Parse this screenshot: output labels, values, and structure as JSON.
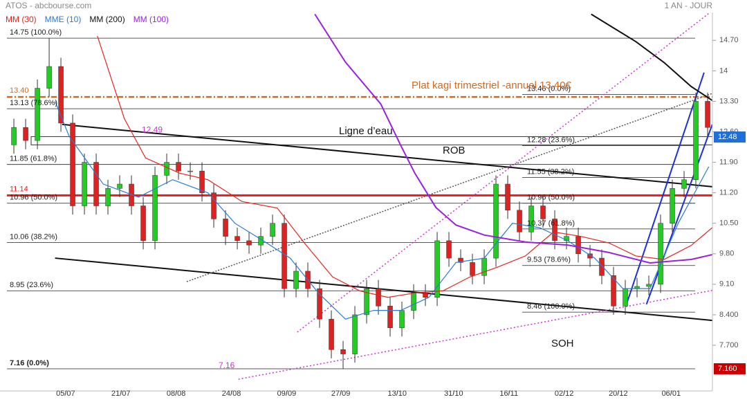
{
  "chart_data": {
    "type": "candlestick",
    "title": "ATOS - abcbourse.com",
    "subtitle": "1 AN - JOUR",
    "xlim": [
      -1.18,
      59.41
    ],
    "ylim": [
      6.81,
      15.34
    ],
    "xticks": [
      {
        "value": 4.4,
        "label": "05/07"
      },
      {
        "value": 9.1,
        "label": "21/07"
      },
      {
        "value": 13.8,
        "label": "08/08"
      },
      {
        "value": 18.5,
        "label": "24/08"
      },
      {
        "value": 23.2,
        "label": "09/09"
      },
      {
        "value": 27.8,
        "label": "27/09"
      },
      {
        "value": 32.6,
        "label": "13/10"
      },
      {
        "value": 37.4,
        "label": "31/10"
      },
      {
        "value": 42.1,
        "label": "16/11"
      },
      {
        "value": 46.8,
        "label": "02/12"
      },
      {
        "value": 51.4,
        "label": "20/12"
      },
      {
        "value": 55.9,
        "label": "06/01"
      }
    ],
    "yticks": [
      {
        "value": 14.7,
        "label": "14.70"
      },
      14,
      {
        "value": 13.3,
        "label": "13.30"
      },
      {
        "value": 12.6,
        "label": "12.60"
      },
      {
        "value": 11.9,
        "label": "11.90"
      },
      {
        "value": 11.2,
        "label": "11.20"
      },
      {
        "value": 10.5,
        "label": "10.50"
      },
      {
        "value": 9.8,
        "label": "9.80"
      },
      {
        "value": 9.1,
        "label": "9.10"
      },
      {
        "value": 8.4,
        "label": "8.400"
      },
      {
        "value": 7.7,
        "label": "7.700"
      }
    ],
    "up_color": "#22cc22",
    "down_color": "#dd2222",
    "open": [
      12.3,
      12.7,
      12.4,
      13.6,
      14.1,
      12.8,
      10.9,
      11.9,
      10.9,
      11.3,
      11.4,
      10.9,
      10.1,
      11.6,
      11.9,
      11.7,
      11.7,
      11.2,
      10.6,
      10.2,
      10.1,
      10.0,
      10.2,
      10.5,
      9.0,
      9.4,
      9.0,
      8.3,
      7.6,
      7.5,
      8.4,
      9.0,
      8.6,
      8.1,
      8.5,
      8.9,
      8.8,
      10.1,
      9.7,
      9.6,
      9.3,
      9.7,
      11.4,
      10.8,
      10.3,
      10.9,
      10.6,
      10.1,
      10.2,
      9.8,
      9.7,
      9.3,
      8.6,
      9.0,
      9.05,
      9.1,
      10.5,
      11.3,
      11.5,
      13.3
    ],
    "high": [
      12.9,
      12.9,
      13.8,
      14.75,
      14.3,
      13.0,
      12.1,
      12.1,
      11.5,
      11.6,
      11.6,
      11.1,
      11.8,
      12.1,
      12.1,
      11.9,
      11.9,
      11.4,
      10.8,
      10.4,
      10.3,
      10.4,
      10.7,
      10.7,
      9.6,
      9.6,
      9.2,
      8.5,
      7.8,
      8.6,
      9.2,
      9.2,
      8.8,
      8.7,
      9.1,
      9.1,
      10.3,
      10.3,
      9.9,
      9.8,
      9.9,
      11.6,
      11.6,
      11.0,
      11.1,
      11.1,
      10.8,
      10.4,
      10.4,
      10.0,
      9.9,
      9.5,
      9.2,
      9.25,
      9.3,
      10.7,
      11.5,
      11.7,
      13.5,
      13.5
    ],
    "low": [
      12.1,
      12.2,
      12.2,
      13.4,
      12.6,
      10.7,
      10.7,
      10.7,
      10.7,
      11.1,
      10.7,
      9.9,
      9.9,
      11.4,
      11.5,
      11.5,
      11.0,
      10.4,
      10.0,
      9.9,
      9.8,
      9.8,
      10.0,
      8.8,
      8.8,
      8.8,
      8.1,
      7.4,
      7.16,
      7.3,
      8.2,
      8.4,
      7.9,
      7.9,
      8.3,
      8.6,
      8.6,
      9.5,
      9.4,
      9.1,
      9.1,
      9.5,
      10.6,
      10.1,
      10.1,
      10.4,
      9.9,
      9.9,
      9.6,
      9.5,
      9.1,
      8.4,
      8.4,
      8.8,
      8.85,
      8.9,
      10.3,
      11.1,
      11.3,
      12.5
    ],
    "close": [
      12.7,
      12.4,
      13.6,
      14.1,
      12.8,
      10.9,
      11.9,
      10.9,
      11.3,
      11.4,
      10.9,
      10.1,
      11.6,
      11.9,
      11.7,
      11.7,
      11.2,
      10.6,
      10.2,
      10.1,
      10.0,
      10.2,
      10.5,
      9.0,
      9.4,
      9.0,
      8.3,
      7.6,
      7.5,
      8.4,
      9.0,
      8.6,
      8.1,
      8.5,
      8.9,
      8.8,
      10.1,
      9.7,
      9.6,
      9.3,
      9.7,
      11.4,
      10.8,
      10.3,
      10.9,
      10.6,
      10.1,
      10.2,
      9.8,
      9.7,
      9.3,
      8.6,
      9.0,
      9.05,
      9.1,
      10.5,
      11.3,
      11.5,
      13.3,
      12.7
    ],
    "series": [
      {
        "name": "MM (30)",
        "color": "#e8231c",
        "x": [
          7.1,
          9.4,
          11.2,
          14.1,
          16.5,
          19.4,
          22.4,
          24.7,
          27.1,
          29.4,
          31.8,
          34.1,
          36.5,
          38.8,
          41.2,
          43.5,
          45.9,
          48.2,
          50.6,
          52.9,
          55.3,
          57.6,
          59.4
        ],
        "values": [
          14.8,
          12.9,
          12.0,
          11.65,
          11.5,
          11.0,
          10.85,
          10.05,
          9.27,
          8.95,
          8.8,
          8.9,
          8.95,
          9.27,
          9.5,
          9.75,
          10.3,
          10.2,
          10.05,
          9.75,
          9.67,
          9.99,
          10.4
        ]
      },
      {
        "name": "MME (10)",
        "color": "#2a7bd4",
        "x": [
          3.5,
          4.7,
          7.6,
          10.6,
          13.5,
          16.5,
          18.8,
          21.2,
          23.5,
          25.9,
          28.2,
          30.6,
          32.9,
          35.3,
          37.6,
          40,
          42.4,
          44.7,
          47.1,
          49.4,
          51.8,
          54.1,
          56.5,
          59.1
        ],
        "values": [
          13.3,
          12.5,
          11.4,
          11.1,
          11.5,
          11.2,
          10.5,
          10.1,
          9.7,
          8.9,
          8.3,
          8.5,
          8.5,
          8.8,
          9.6,
          9.7,
          10.5,
          10.4,
          10.1,
          9.7,
          9.0,
          9.0,
          10.5,
          11.8
        ]
      },
      {
        "name": "MM (200)",
        "color": "#111111",
        "x": [
          49.1,
          52.9,
          55.3,
          57.6,
          59.4
        ],
        "values": [
          15.3,
          14.67,
          14.19,
          13.64,
          13.32
        ]
      },
      {
        "name": "MM (100)",
        "color": "#9a1fe0",
        "x": [
          25.6,
          28.2,
          31.2,
          32.9,
          34.1,
          35.9,
          37.6,
          40,
          43.5,
          47.1,
          50.6,
          54.1,
          57.6,
          59.4
        ],
        "values": [
          15.3,
          14.2,
          13.24,
          12.29,
          11.65,
          10.86,
          10.46,
          10.23,
          10.07,
          10.0,
          9.83,
          9.59,
          9.67,
          9.78
        ]
      }
    ],
    "fib_left": [
      {
        "value": 14.75,
        "label": "14.75  (100.0%)"
      },
      {
        "value": 13.13,
        "label": "13.13  (78.6%)"
      },
      {
        "value": 11.85,
        "label": "11.85  (61.8%)"
      },
      {
        "value": 10.96,
        "label": "10.96  (50.0%)"
      },
      {
        "value": 10.06,
        "label": "10.06  (38.2%)"
      },
      {
        "value": 8.95,
        "label": "8.95  (23.6%)"
      },
      {
        "value": 7.16,
        "label": "7.16  (0.0%)"
      }
    ],
    "fib_right": [
      {
        "value": 13.46,
        "label": "13.46  (0.0%)"
      },
      {
        "value": 12.28,
        "label": "12.28  (23.6%)"
      },
      {
        "value": 11.55,
        "label": "11.55  (38.2%)"
      },
      {
        "value": 10.96,
        "label": "10.96  (50.0%)"
      },
      {
        "value": 10.37,
        "label": "10.37  (61.8%)"
      },
      {
        "value": 9.53,
        "label": "9.53  (78.6%)"
      },
      {
        "value": 8.46,
        "label": "8.46  (100.0%)"
      }
    ],
    "hlines": [
      {
        "value": 11.14,
        "label": "11.14",
        "color": "#e81c1c"
      },
      {
        "value": 13.4,
        "label": "13.40",
        "color": "#d2691e"
      }
    ],
    "zone": {
      "low": 12.3,
      "high": 12.49,
      "color": "#cc33cc"
    },
    "trendlines": [
      {
        "color": "#111111",
        "x": [
          4.1,
          59.4
        ],
        "values": [
          12.77,
          11.34
        ]
      },
      {
        "color": "#111111",
        "x": [
          3.5,
          59.4
        ],
        "values": [
          9.7,
          8.27
        ]
      },
      {
        "color": "#cc33cc",
        "x": [
          19.1,
          59.4
        ],
        "values": [
          6.92,
          8.96
        ]
      },
      {
        "color": "#cc33cc",
        "x": [
          24.1,
          59.4
        ],
        "values": [
          8.0,
          15.38
        ]
      },
      {
        "color": "#555555",
        "x": [
          14.7,
          59.4
        ],
        "values": [
          9.16,
          13.48
        ]
      },
      {
        "color": "#1a2fe0",
        "x": [
          52.1,
          58.7
        ],
        "values": [
          8.64,
          13.96
        ]
      },
      {
        "color": "#1a2fe0",
        "x": [
          53.8,
          59.4
        ],
        "values": [
          8.64,
          12.77
        ]
      }
    ],
    "annotations": [
      "Ligne d’eau",
      "ROB",
      "SOH",
      "Plat kagi trimestriel -annuel 13.40€",
      "7.16"
    ],
    "price_labels": [
      {
        "value": 12.48,
        "label": "12.48",
        "color": "#1e6fd9"
      },
      {
        "value": 7.16,
        "label": "7.160",
        "color": "#cc0000"
      }
    ]
  }
}
